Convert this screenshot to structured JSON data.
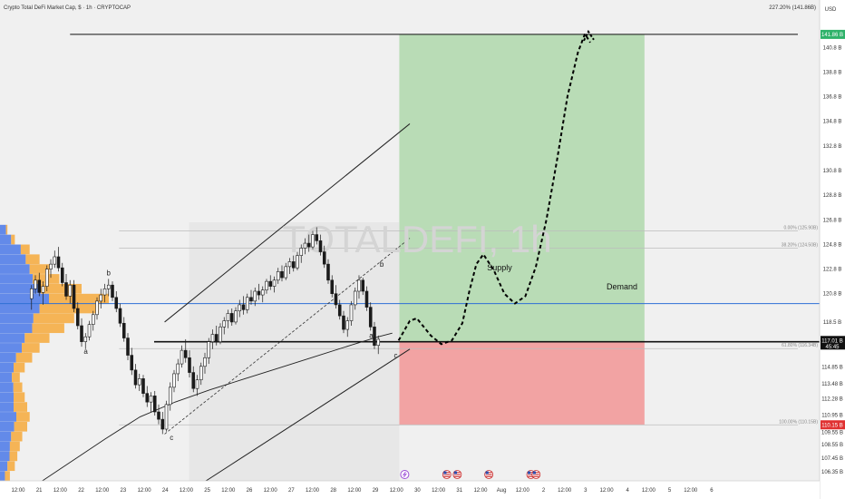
{
  "header": {
    "title": "Crypto Total DeFi Market Cap, $ · 1h · CRYPTOCAP",
    "top_right_level": "227.20% (141.86B)",
    "currency": "USD"
  },
  "watermark": "TOTALDEFI, 1h",
  "colors": {
    "background": "#f0f0f0",
    "candle": "#1a1a1a",
    "profit_zone": "#b9dcb6",
    "loss_zone": "#f2a3a3",
    "blue_line": "#2e6fd6",
    "vp_blue": "#4a78e8",
    "vp_orange": "#f6a93b",
    "target_badge": "#2fb26a",
    "stop_badge": "#e03131",
    "price_badge": "#111111"
  },
  "y_axis": {
    "min": 105.6,
    "max": 143.4,
    "ticks": [
      "140.8",
      "138.8",
      "136.8",
      "134.8",
      "132.8",
      "130.8",
      "128.8",
      "126.8",
      "124.8",
      "122.8",
      "120.8",
      "118.5",
      "116.9",
      "114.85",
      "113.48",
      "112.28",
      "110.95",
      "109.55",
      "108.55",
      "107.45",
      "106.35"
    ],
    "tick_values": [
      140.8,
      138.8,
      136.8,
      134.8,
      132.8,
      130.8,
      128.8,
      126.8,
      124.8,
      122.8,
      120.8,
      118.5,
      116.9,
      114.85,
      113.48,
      112.28,
      110.95,
      109.55,
      108.55,
      107.45,
      106.35
    ]
  },
  "price_badges": {
    "current_value": 117.0,
    "current_label": "117.01 B",
    "countdown": "45:45",
    "target_value": 141.86,
    "target_label": "141.86 B",
    "stop_value": 110.15,
    "stop_label": "110.15 B"
  },
  "x_axis": {
    "start": 0,
    "end": 234,
    "labels": [
      {
        "x": 0,
        "text": "12:00"
      },
      {
        "x": 6,
        "text": "21"
      },
      {
        "x": 12,
        "text": "12:00"
      },
      {
        "x": 18,
        "text": "22"
      },
      {
        "x": 24,
        "text": "12:00"
      },
      {
        "x": 30,
        "text": "23"
      },
      {
        "x": 36,
        "text": "12:00"
      },
      {
        "x": 42,
        "text": "24"
      },
      {
        "x": 48,
        "text": "12:00"
      },
      {
        "x": 54,
        "text": "25"
      },
      {
        "x": 60,
        "text": "12:00"
      },
      {
        "x": 66,
        "text": "26"
      },
      {
        "x": 72,
        "text": "12:00"
      },
      {
        "x": 78,
        "text": "27"
      },
      {
        "x": 84,
        "text": "12:00"
      },
      {
        "x": 90,
        "text": "28"
      },
      {
        "x": 96,
        "text": "12:00"
      },
      {
        "x": 102,
        "text": "29"
      },
      {
        "x": 108,
        "text": "12:00"
      },
      {
        "x": 114,
        "text": "30"
      },
      {
        "x": 120,
        "text": "12:00"
      },
      {
        "x": 126,
        "text": "31"
      },
      {
        "x": 132,
        "text": "12:00"
      },
      {
        "x": 138,
        "text": "Aug"
      },
      {
        "x": 144,
        "text": "12:00"
      },
      {
        "x": 150,
        "text": "2"
      },
      {
        "x": 156,
        "text": "12:00"
      },
      {
        "x": 162,
        "text": "3"
      },
      {
        "x": 168,
        "text": "12:00"
      },
      {
        "x": 174,
        "text": "4"
      },
      {
        "x": 180,
        "text": "12:00"
      },
      {
        "x": 186,
        "text": "5"
      },
      {
        "x": 192,
        "text": "12:00"
      },
      {
        "x": 198,
        "text": "6"
      }
    ]
  },
  "fib_levels": [
    {
      "value": 141.86,
      "label": "227.20% (141.86B)"
    },
    {
      "value": 125.9,
      "label": "0.00% (125.90B)"
    },
    {
      "value": 124.5,
      "label": "38.20% (124.50B)"
    },
    {
      "value": 116.34,
      "label": "61.80% (116.34B)"
    },
    {
      "value": 110.15,
      "label": "100.00% (110.15B)"
    }
  ],
  "annotations": {
    "supply": "Supply",
    "demand": "Demand",
    "wave_labels": [
      {
        "text": "b",
        "x": 31,
        "y": 122.3
      },
      {
        "text": "a",
        "x": 24.5,
        "y": 115.9
      },
      {
        "text": "c",
        "x": 49,
        "y": 108.9
      },
      {
        "text": "b",
        "x": 109,
        "y": 123.0
      },
      {
        "text": "a",
        "x": 106,
        "y": 117.2
      },
      {
        "text": "c",
        "x": 113,
        "y": 115.6
      }
    ]
  },
  "chart_data": {
    "type": "candlestick",
    "title": "Crypto Total DeFi Market Cap, $ · 1h · CRYPTOCAP",
    "x_unit": "hours (4-hour bars)",
    "y_unit": "B USD",
    "ylim": [
      105.6,
      143.4
    ],
    "candles": [
      {
        "x": 9.0,
        "o": 120.4,
        "h": 121.5,
        "l": 119.5,
        "c": 121.2
      },
      {
        "x": 10.1,
        "o": 121.2,
        "h": 122.3,
        "l": 120.8,
        "c": 121.9
      },
      {
        "x": 11.2,
        "o": 121.9,
        "h": 122.5,
        "l": 120.6,
        "c": 120.9
      },
      {
        "x": 12.3,
        "o": 120.9,
        "h": 121.8,
        "l": 119.9,
        "c": 121.4
      },
      {
        "x": 13.4,
        "o": 121.4,
        "h": 123.1,
        "l": 121.0,
        "c": 122.8
      },
      {
        "x": 14.5,
        "o": 122.8,
        "h": 123.6,
        "l": 122.1,
        "c": 123.2
      },
      {
        "x": 15.6,
        "o": 123.2,
        "h": 124.3,
        "l": 122.9,
        "c": 123.8
      },
      {
        "x": 16.7,
        "o": 123.8,
        "h": 124.6,
        "l": 122.6,
        "c": 122.9
      },
      {
        "x": 17.8,
        "o": 122.9,
        "h": 123.3,
        "l": 121.4,
        "c": 121.7
      },
      {
        "x": 18.9,
        "o": 121.7,
        "h": 122.4,
        "l": 120.3,
        "c": 120.6
      },
      {
        "x": 20.0,
        "o": 120.6,
        "h": 121.9,
        "l": 120.0,
        "c": 121.5
      },
      {
        "x": 21.1,
        "o": 121.5,
        "h": 121.9,
        "l": 119.3,
        "c": 119.6
      },
      {
        "x": 22.2,
        "o": 119.6,
        "h": 120.1,
        "l": 117.9,
        "c": 118.2
      },
      {
        "x": 23.3,
        "o": 118.2,
        "h": 118.8,
        "l": 116.5,
        "c": 116.9
      },
      {
        "x": 24.4,
        "o": 116.9,
        "h": 117.6,
        "l": 116.3,
        "c": 117.3
      },
      {
        "x": 25.5,
        "o": 117.3,
        "h": 118.6,
        "l": 117.0,
        "c": 118.3
      },
      {
        "x": 26.6,
        "o": 118.3,
        "h": 119.4,
        "l": 117.8,
        "c": 119.1
      },
      {
        "x": 27.7,
        "o": 119.1,
        "h": 120.5,
        "l": 118.7,
        "c": 120.2
      },
      {
        "x": 28.8,
        "o": 120.2,
        "h": 121.2,
        "l": 119.6,
        "c": 120.7
      },
      {
        "x": 29.9,
        "o": 120.7,
        "h": 121.6,
        "l": 120.1,
        "c": 121.2
      },
      {
        "x": 31.0,
        "o": 121.2,
        "h": 122.0,
        "l": 120.6,
        "c": 121.5
      },
      {
        "x": 32.1,
        "o": 121.5,
        "h": 121.8,
        "l": 120.2,
        "c": 120.5
      },
      {
        "x": 33.2,
        "o": 120.5,
        "h": 121.0,
        "l": 119.3,
        "c": 119.6
      },
      {
        "x": 34.3,
        "o": 119.6,
        "h": 120.0,
        "l": 118.1,
        "c": 118.4
      },
      {
        "x": 35.4,
        "o": 118.4,
        "h": 118.9,
        "l": 116.9,
        "c": 117.2
      },
      {
        "x": 36.5,
        "o": 117.2,
        "h": 117.6,
        "l": 115.4,
        "c": 115.8
      },
      {
        "x": 37.6,
        "o": 115.8,
        "h": 116.4,
        "l": 114.2,
        "c": 114.6
      },
      {
        "x": 38.7,
        "o": 114.6,
        "h": 115.1,
        "l": 113.1,
        "c": 113.4
      },
      {
        "x": 39.8,
        "o": 113.4,
        "h": 114.3,
        "l": 112.9,
        "c": 113.9
      },
      {
        "x": 40.9,
        "o": 113.9,
        "h": 114.2,
        "l": 112.4,
        "c": 112.7
      },
      {
        "x": 42.0,
        "o": 112.7,
        "h": 113.3,
        "l": 111.6,
        "c": 112.0
      },
      {
        "x": 43.1,
        "o": 112.0,
        "h": 112.8,
        "l": 111.2,
        "c": 112.5
      },
      {
        "x": 44.2,
        "o": 112.5,
        "h": 112.9,
        "l": 110.9,
        "c": 111.2
      },
      {
        "x": 45.3,
        "o": 111.2,
        "h": 111.8,
        "l": 110.2,
        "c": 110.6
      },
      {
        "x": 46.4,
        "o": 110.6,
        "h": 111.2,
        "l": 109.4,
        "c": 109.8
      },
      {
        "x": 47.5,
        "o": 109.8,
        "h": 112.1,
        "l": 109.6,
        "c": 111.8
      },
      {
        "x": 48.6,
        "o": 111.8,
        "h": 113.6,
        "l": 111.3,
        "c": 113.2
      },
      {
        "x": 49.7,
        "o": 113.2,
        "h": 114.6,
        "l": 112.8,
        "c": 114.3
      },
      {
        "x": 50.8,
        "o": 114.3,
        "h": 115.5,
        "l": 113.7,
        "c": 115.1
      },
      {
        "x": 51.9,
        "o": 115.1,
        "h": 116.6,
        "l": 114.8,
        "c": 116.2
      },
      {
        "x": 53.0,
        "o": 116.2,
        "h": 117.1,
        "l": 115.2,
        "c": 115.6
      },
      {
        "x": 54.1,
        "o": 115.6,
        "h": 116.2,
        "l": 114.0,
        "c": 114.4
      },
      {
        "x": 55.2,
        "o": 114.4,
        "h": 114.9,
        "l": 112.8,
        "c": 113.1
      },
      {
        "x": 56.3,
        "o": 113.1,
        "h": 114.2,
        "l": 112.5,
        "c": 113.8
      },
      {
        "x": 57.4,
        "o": 113.8,
        "h": 115.2,
        "l": 113.4,
        "c": 114.9
      },
      {
        "x": 58.5,
        "o": 114.9,
        "h": 116.0,
        "l": 114.3,
        "c": 115.6
      },
      {
        "x": 59.6,
        "o": 115.6,
        "h": 117.2,
        "l": 115.1,
        "c": 116.9
      },
      {
        "x": 60.7,
        "o": 116.9,
        "h": 117.9,
        "l": 116.3,
        "c": 117.5
      },
      {
        "x": 61.8,
        "o": 117.5,
        "h": 118.2,
        "l": 116.6,
        "c": 116.9
      },
      {
        "x": 62.9,
        "o": 116.9,
        "h": 118.4,
        "l": 116.7,
        "c": 118.1
      },
      {
        "x": 64.0,
        "o": 118.1,
        "h": 118.9,
        "l": 117.5,
        "c": 118.6
      },
      {
        "x": 65.1,
        "o": 118.6,
        "h": 119.5,
        "l": 118.0,
        "c": 119.2
      },
      {
        "x": 66.2,
        "o": 119.2,
        "h": 119.6,
        "l": 118.2,
        "c": 118.5
      },
      {
        "x": 67.3,
        "o": 118.5,
        "h": 119.7,
        "l": 118.3,
        "c": 119.4
      },
      {
        "x": 68.4,
        "o": 119.4,
        "h": 120.3,
        "l": 118.9,
        "c": 119.9
      },
      {
        "x": 69.5,
        "o": 119.9,
        "h": 120.6,
        "l": 119.1,
        "c": 119.5
      },
      {
        "x": 70.6,
        "o": 119.5,
        "h": 120.8,
        "l": 119.2,
        "c": 120.5
      },
      {
        "x": 71.7,
        "o": 120.5,
        "h": 121.1,
        "l": 119.9,
        "c": 120.2
      },
      {
        "x": 72.8,
        "o": 120.2,
        "h": 121.3,
        "l": 119.8,
        "c": 121.0
      },
      {
        "x": 73.9,
        "o": 121.0,
        "h": 121.6,
        "l": 120.3,
        "c": 120.7
      },
      {
        "x": 75.0,
        "o": 120.7,
        "h": 121.4,
        "l": 120.1,
        "c": 121.1
      },
      {
        "x": 76.1,
        "o": 121.1,
        "h": 122.0,
        "l": 120.8,
        "c": 121.8
      },
      {
        "x": 77.2,
        "o": 121.8,
        "h": 122.3,
        "l": 121.1,
        "c": 121.4
      },
      {
        "x": 78.3,
        "o": 121.4,
        "h": 122.2,
        "l": 120.9,
        "c": 121.9
      },
      {
        "x": 79.4,
        "o": 121.9,
        "h": 122.9,
        "l": 121.6,
        "c": 122.6
      },
      {
        "x": 80.5,
        "o": 122.6,
        "h": 123.1,
        "l": 121.8,
        "c": 122.1
      },
      {
        "x": 81.6,
        "o": 122.1,
        "h": 123.3,
        "l": 121.9,
        "c": 123.0
      },
      {
        "x": 82.7,
        "o": 123.0,
        "h": 123.7,
        "l": 122.4,
        "c": 123.4
      },
      {
        "x": 83.8,
        "o": 123.4,
        "h": 123.9,
        "l": 122.6,
        "c": 122.9
      },
      {
        "x": 84.9,
        "o": 122.9,
        "h": 124.2,
        "l": 122.7,
        "c": 123.9
      },
      {
        "x": 86.0,
        "o": 123.9,
        "h": 124.8,
        "l": 123.3,
        "c": 124.5
      },
      {
        "x": 87.1,
        "o": 124.5,
        "h": 125.3,
        "l": 124.0,
        "c": 124.9
      },
      {
        "x": 88.2,
        "o": 124.9,
        "h": 125.6,
        "l": 124.2,
        "c": 124.6
      },
      {
        "x": 89.3,
        "o": 124.6,
        "h": 125.9,
        "l": 124.4,
        "c": 125.6
      },
      {
        "x": 90.4,
        "o": 125.6,
        "h": 126.2,
        "l": 124.8,
        "c": 125.1
      },
      {
        "x": 91.5,
        "o": 125.1,
        "h": 125.6,
        "l": 123.9,
        "c": 124.2
      },
      {
        "x": 92.6,
        "o": 124.2,
        "h": 124.7,
        "l": 122.9,
        "c": 123.2
      },
      {
        "x": 93.7,
        "o": 123.2,
        "h": 123.6,
        "l": 121.6,
        "c": 121.9
      },
      {
        "x": 94.8,
        "o": 121.9,
        "h": 122.3,
        "l": 120.5,
        "c": 120.8
      },
      {
        "x": 95.9,
        "o": 120.8,
        "h": 121.5,
        "l": 119.6,
        "c": 119.9
      },
      {
        "x": 97.0,
        "o": 119.9,
        "h": 120.3,
        "l": 118.7,
        "c": 119.0
      },
      {
        "x": 98.1,
        "o": 119.0,
        "h": 119.4,
        "l": 117.6,
        "c": 117.9
      },
      {
        "x": 99.2,
        "o": 117.9,
        "h": 118.9,
        "l": 117.3,
        "c": 118.6
      },
      {
        "x": 100.3,
        "o": 118.6,
        "h": 120.2,
        "l": 118.2,
        "c": 119.9
      },
      {
        "x": 101.4,
        "o": 119.9,
        "h": 121.3,
        "l": 119.5,
        "c": 121.0
      },
      {
        "x": 102.5,
        "o": 121.0,
        "h": 122.3,
        "l": 120.4,
        "c": 121.9
      },
      {
        "x": 103.6,
        "o": 121.9,
        "h": 122.1,
        "l": 120.7,
        "c": 121.0
      },
      {
        "x": 104.7,
        "o": 121.0,
        "h": 121.4,
        "l": 119.4,
        "c": 119.7
      },
      {
        "x": 105.8,
        "o": 119.7,
        "h": 120.1,
        "l": 117.8,
        "c": 118.1
      },
      {
        "x": 106.9,
        "o": 118.1,
        "h": 118.5,
        "l": 116.3,
        "c": 116.6
      },
      {
        "x": 108.0,
        "o": 116.6,
        "h": 117.4,
        "l": 115.9,
        "c": 117.1
      }
    ],
    "moving_average_200": [
      [
        0,
        103.5
      ],
      [
        10,
        105.2
      ],
      [
        20,
        107.1
      ],
      [
        30,
        109.0
      ],
      [
        40,
        110.8
      ],
      [
        50,
        112.0
      ],
      [
        60,
        113.0
      ],
      [
        70,
        113.9
      ],
      [
        80,
        114.8
      ],
      [
        90,
        115.7
      ],
      [
        100,
        116.6
      ],
      [
        108,
        117.3
      ],
      [
        112,
        117.6
      ]
    ],
    "ascending_channel": {
      "upper": [
        [
          47,
          118.5
        ],
        [
          117,
          134.6
        ]
      ],
      "lower": [
        [
          55,
          104.9
        ],
        [
          117,
          116.3
        ]
      ],
      "mid_dashed": [
        [
          47,
          109.4
        ],
        [
          117,
          125.3
        ]
      ]
    },
    "horizontal_lines": [
      {
        "name": "blue_line",
        "value": 120.0
      },
      {
        "name": "black_line",
        "value": 116.9
      }
    ],
    "position": {
      "entry": 116.9,
      "target": 141.86,
      "stop": 110.15,
      "x_start": 114,
      "x_end": 184
    },
    "projected_path": [
      [
        113.8,
        117.0
      ],
      [
        117,
        118.6
      ],
      [
        119,
        118.8
      ],
      [
        123,
        117.4
      ],
      [
        126,
        116.7
      ],
      [
        129,
        117.0
      ],
      [
        132,
        118.4
      ],
      [
        134,
        121.0
      ],
      [
        136,
        123.2
      ],
      [
        138,
        124.0
      ],
      [
        141,
        122.7
      ],
      [
        144,
        120.8
      ],
      [
        147,
        120.0
      ],
      [
        150,
        120.6
      ],
      [
        153,
        123.0
      ],
      [
        156,
        126.8
      ],
      [
        159,
        131.6
      ],
      [
        162,
        136.8
      ],
      [
        165,
        140.4
      ],
      [
        167,
        141.9
      ],
      [
        168.5,
        141.2
      ]
    ],
    "volume_profile": [
      {
        "price": 106.0,
        "vol": 4,
        "buy": 0.5
      },
      {
        "price": 106.8,
        "vol": 6,
        "buy": 0.5
      },
      {
        "price": 107.6,
        "vol": 7,
        "buy": 0.55
      },
      {
        "price": 108.4,
        "vol": 8,
        "buy": 0.5
      },
      {
        "price": 109.2,
        "vol": 9,
        "buy": 0.5
      },
      {
        "price": 110.0,
        "vol": 11,
        "buy": 0.52
      },
      {
        "price": 110.8,
        "vol": 12,
        "buy": 0.55
      },
      {
        "price": 111.6,
        "vol": 11,
        "buy": 0.5
      },
      {
        "price": 112.4,
        "vol": 10,
        "buy": 0.55
      },
      {
        "price": 113.2,
        "vol": 9,
        "buy": 0.6
      },
      {
        "price": 114.0,
        "vol": 8,
        "buy": 0.6
      },
      {
        "price": 114.8,
        "vol": 10,
        "buy": 0.55
      },
      {
        "price": 115.6,
        "vol": 13,
        "buy": 0.5
      },
      {
        "price": 116.4,
        "vol": 16,
        "buy": 0.55
      },
      {
        "price": 117.2,
        "vol": 20,
        "buy": 0.5
      },
      {
        "price": 118.0,
        "vol": 26,
        "buy": 0.5
      },
      {
        "price": 118.8,
        "vol": 30,
        "buy": 0.45
      },
      {
        "price": 119.6,
        "vol": 40,
        "buy": 0.4
      },
      {
        "price": 120.4,
        "vol": 44,
        "buy": 0.45
      },
      {
        "price": 121.2,
        "vol": 33,
        "buy": 0.5
      },
      {
        "price": 122.0,
        "vol": 24,
        "buy": 0.55
      },
      {
        "price": 122.8,
        "vol": 20,
        "buy": 0.6
      },
      {
        "price": 123.6,
        "vol": 16,
        "buy": 0.65
      },
      {
        "price": 124.4,
        "vol": 12,
        "buy": 0.7
      },
      {
        "price": 125.2,
        "vol": 6,
        "buy": 0.75
      },
      {
        "price": 126.0,
        "vol": 3,
        "buy": 0.8
      }
    ],
    "events": [
      {
        "x": 114,
        "type": "flash"
      },
      {
        "x": 126,
        "type": "us-flag"
      },
      {
        "x": 129,
        "type": "us-flag"
      },
      {
        "x": 138,
        "type": "us-flag"
      },
      {
        "x": 150,
        "type": "us-flag"
      },
      {
        "x": 151.5,
        "type": "us-flag"
      }
    ]
  }
}
